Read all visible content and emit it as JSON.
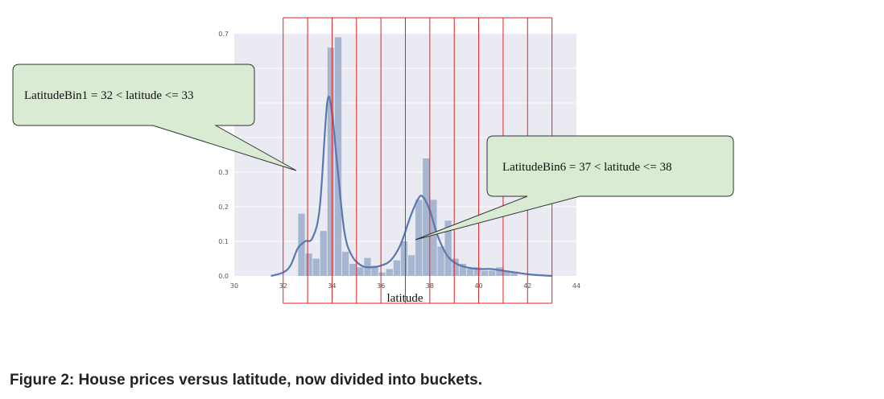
{
  "chart_data": {
    "type": "bar",
    "xlabel": "latitude",
    "ylabel": "",
    "xlim": [
      30,
      44
    ],
    "ylim": [
      0,
      0.7
    ],
    "x_ticks": [
      30,
      32,
      34,
      36,
      38,
      40,
      42,
      44
    ],
    "y_ticks": [
      0.0,
      0.1,
      0.2,
      0.3,
      0.7
    ],
    "y_tick_labels": [
      "0.0",
      "0.1",
      "0.2",
      "0.3",
      "0.7"
    ],
    "grid": true,
    "histogram": {
      "bin_width": 0.3,
      "bins": [
        {
          "x0": 32.6,
          "value": 0.18
        },
        {
          "x0": 32.9,
          "value": 0.065
        },
        {
          "x0": 33.2,
          "value": 0.05
        },
        {
          "x0": 33.5,
          "value": 0.13
        },
        {
          "x0": 33.8,
          "value": 0.66
        },
        {
          "x0": 34.1,
          "value": 0.69
        },
        {
          "x0": 34.4,
          "value": 0.07
        },
        {
          "x0": 34.7,
          "value": 0.035
        },
        {
          "x0": 35.0,
          "value": 0.025
        },
        {
          "x0": 35.3,
          "value": 0.052
        },
        {
          "x0": 35.6,
          "value": 0.03
        },
        {
          "x0": 35.9,
          "value": 0.01
        },
        {
          "x0": 36.2,
          "value": 0.02
        },
        {
          "x0": 36.5,
          "value": 0.045
        },
        {
          "x0": 36.8,
          "value": 0.1
        },
        {
          "x0": 37.1,
          "value": 0.06
        },
        {
          "x0": 37.4,
          "value": 0.22
        },
        {
          "x0": 37.7,
          "value": 0.34
        },
        {
          "x0": 38.0,
          "value": 0.22
        },
        {
          "x0": 38.3,
          "value": 0.085
        },
        {
          "x0": 38.6,
          "value": 0.16
        },
        {
          "x0": 38.9,
          "value": 0.05
        },
        {
          "x0": 39.2,
          "value": 0.035
        },
        {
          "x0": 39.5,
          "value": 0.02
        },
        {
          "x0": 39.8,
          "value": 0.025
        },
        {
          "x0": 40.1,
          "value": 0.015
        },
        {
          "x0": 40.4,
          "value": 0.015
        },
        {
          "x0": 40.7,
          "value": 0.025
        },
        {
          "x0": 41.0,
          "value": 0.015
        },
        {
          "x0": 41.3,
          "value": 0.01
        }
      ]
    },
    "kde": {
      "x": [
        31.5,
        32.0,
        32.3,
        32.6,
        32.9,
        33.2,
        33.5,
        33.8,
        34.0,
        34.2,
        34.5,
        34.8,
        35.2,
        35.6,
        36.0,
        36.4,
        36.8,
        37.2,
        37.5,
        37.7,
        38.0,
        38.3,
        38.7,
        39.1,
        39.5,
        40.0,
        40.5,
        41.0,
        41.5,
        42.0,
        42.5,
        43.0
      ],
      "y": [
        0.0,
        0.01,
        0.03,
        0.08,
        0.1,
        0.11,
        0.2,
        0.5,
        0.47,
        0.33,
        0.13,
        0.06,
        0.03,
        0.025,
        0.03,
        0.045,
        0.09,
        0.17,
        0.22,
        0.23,
        0.19,
        0.12,
        0.06,
        0.035,
        0.025,
        0.02,
        0.02,
        0.015,
        0.01,
        0.005,
        0.002,
        0.0
      ]
    },
    "bucket_boundaries": [
      32,
      33,
      34,
      35,
      36,
      37,
      38,
      39,
      40,
      41,
      42,
      43
    ],
    "annotations": [
      {
        "text": "LatitudeBin1 = 32 < latitude <= 33"
      },
      {
        "text": "LatitudeBin6 = 37 < latitude <= 38"
      }
    ]
  },
  "caption": "Figure 2: House prices versus latitude, now divided into buckets.",
  "colors": {
    "plot_background": "#eaeaf2",
    "grid": "#ffffff",
    "bar": "#9fb0cc",
    "kde": "#5a78b0",
    "bucket_line": "#e02020",
    "callout_fill": "#d9ebd2",
    "callout_border": "#333333"
  }
}
